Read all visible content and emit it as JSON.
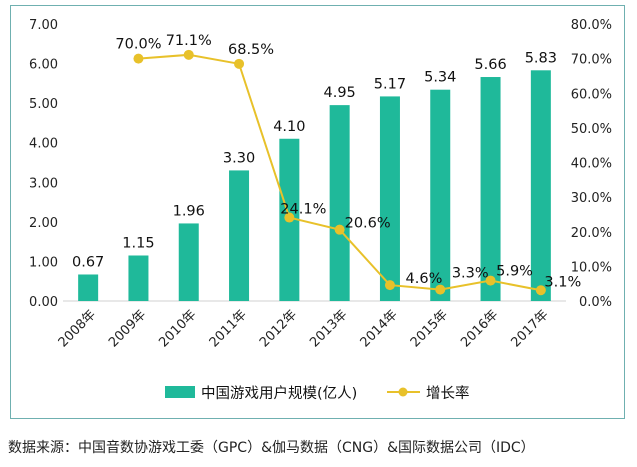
{
  "chart_data": {
    "type": "bar",
    "categories": [
      "2008年",
      "2009年",
      "2010年",
      "2011年",
      "2012年",
      "2013年",
      "2014年",
      "2015年",
      "2016年",
      "2017年"
    ],
    "series": [
      {
        "name": "中国游戏用户规模(亿人)",
        "type": "bar",
        "axis": "left",
        "color": "#1fb99a",
        "values": [
          0.67,
          1.15,
          1.96,
          3.3,
          4.1,
          4.95,
          5.17,
          5.34,
          5.66,
          5.83
        ],
        "labels": [
          "0.67",
          "1.15",
          "1.96",
          "3.30",
          "4.10",
          "4.95",
          "5.17",
          "5.34",
          "5.66",
          "5.83"
        ]
      },
      {
        "name": "增长率",
        "type": "line",
        "axis": "right",
        "color": "#e8c12a",
        "values": [
          null,
          70.0,
          71.1,
          68.5,
          24.1,
          20.6,
          4.6,
          3.3,
          5.9,
          3.1
        ],
        "labels": [
          "",
          "70.0%",
          "71.1%",
          "68.5%",
          "24.1%",
          "20.6%",
          "4.6%",
          "3.3%",
          "5.9%",
          "3.1%"
        ]
      }
    ],
    "y_left": {
      "range": [
        0,
        7
      ],
      "ticks": [
        "0.00",
        "1.00",
        "2.00",
        "3.00",
        "4.00",
        "5.00",
        "6.00",
        "7.00"
      ]
    },
    "y_right": {
      "range": [
        0,
        80
      ],
      "ticks": [
        "0.0%",
        "10.0%",
        "20.0%",
        "30.0%",
        "40.0%",
        "50.0%",
        "60.0%",
        "70.0%",
        "80.0%"
      ]
    },
    "grid": false,
    "legend": "bottom"
  },
  "source": "数据来源：中国音数协游戏工委（GPC）&伽马数据（CNG）&国际数据公司（IDC）"
}
